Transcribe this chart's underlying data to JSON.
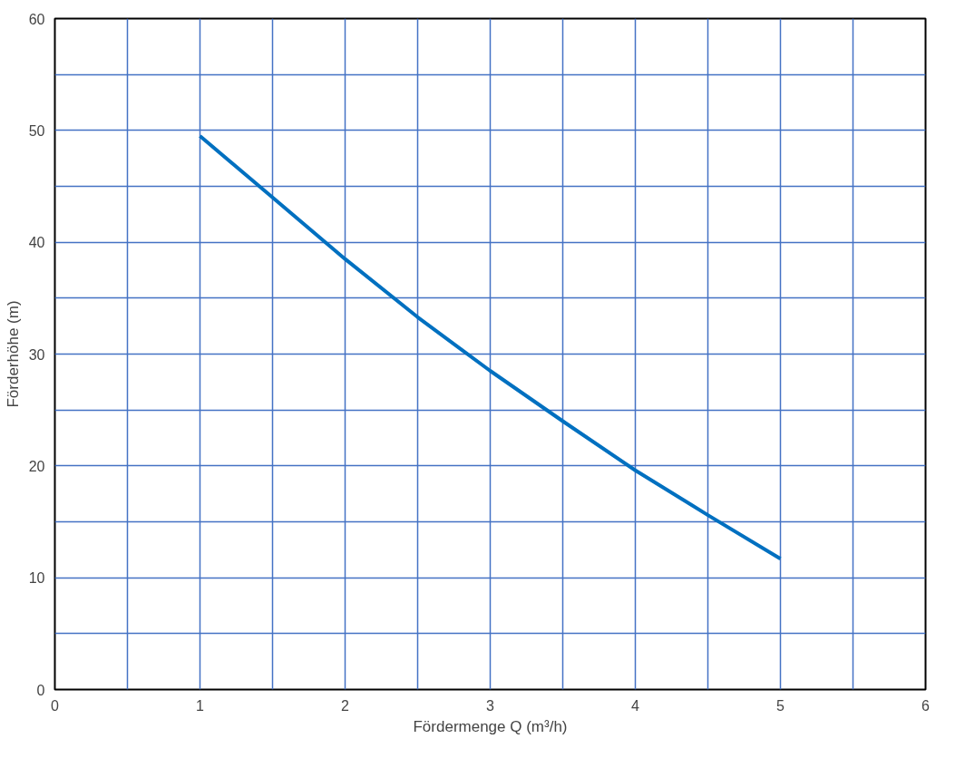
{
  "chart_data": {
    "type": "line",
    "xlabel": "Fördermenge Q (m³/h)",
    "ylabel": "Förderhöhe (m)",
    "x": [
      1,
      1.5,
      2,
      2.5,
      3,
      3.5,
      4,
      4.5,
      5
    ],
    "series": [
      {
        "color": "#0070c0",
        "values": [
          49.5,
          44,
          38.5,
          33.3,
          28.5,
          24,
          19.6,
          15.6,
          11.7
        ]
      }
    ],
    "xlim": [
      0,
      6
    ],
    "ylim": [
      0,
      60
    ],
    "xticks": [
      0,
      {
        "value": 0.5,
        "label": null
      },
      1,
      {
        "value": 1.5,
        "label": null
      },
      2,
      {
        "value": 2.5,
        "label": null
      },
      3,
      {
        "value": 3.5,
        "label": null
      },
      4,
      {
        "value": 4.5,
        "label": null
      },
      5,
      {
        "value": 5.5,
        "label": null
      },
      6
    ],
    "yticks": [
      0,
      {
        "value": 5,
        "label": null
      },
      10,
      {
        "value": 15,
        "label": null
      },
      20,
      {
        "value": 25,
        "label": null
      },
      30,
      {
        "value": 35,
        "label": null
      },
      40,
      {
        "value": 45,
        "label": null
      },
      50,
      {
        "value": 55,
        "label": null
      },
      60
    ],
    "grid": true,
    "marker": "none",
    "line_style": "solid"
  }
}
